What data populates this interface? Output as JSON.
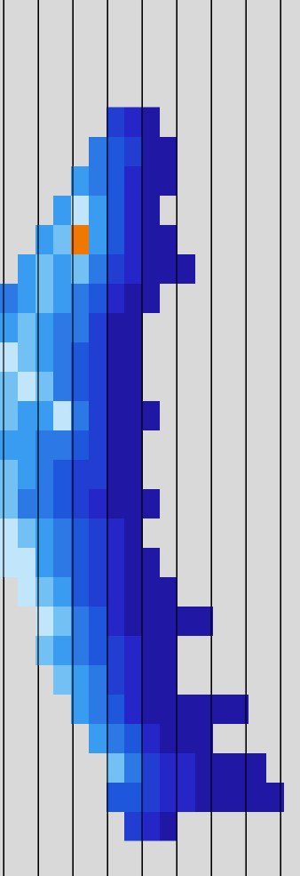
{
  "chart_data": {
    "type": "heatmap",
    "x": [
      10,
      30,
      50,
      70,
      90,
      110,
      130,
      150,
      170,
      190,
      210,
      230,
      250,
      270,
      290,
      310,
      330
    ],
    "y": [
      137,
      170,
      203,
      236,
      269,
      302,
      335,
      368,
      401,
      434,
      467,
      500,
      533,
      566,
      599,
      632,
      665,
      698,
      731,
      764,
      797,
      830,
      863,
      896,
      929
    ],
    "z": [
      [
        null,
        null,
        null,
        null,
        null,
        null,
        3,
        2,
        1,
        null,
        null,
        null,
        null,
        null,
        null,
        null,
        null
      ],
      [
        null,
        null,
        null,
        null,
        null,
        5,
        4,
        3,
        1,
        1,
        null,
        null,
        null,
        null,
        null,
        null,
        null
      ],
      [
        null,
        null,
        null,
        null,
        6,
        5,
        4,
        2,
        1,
        1,
        null,
        null,
        null,
        null,
        null,
        null,
        null
      ],
      [
        null,
        null,
        null,
        6,
        8,
        6,
        4,
        2,
        1,
        null,
        null,
        null,
        null,
        null,
        null,
        null,
        null
      ],
      [
        null,
        null,
        6,
        7,
        10,
        6,
        4,
        2,
        1,
        1,
        null,
        null,
        null,
        null,
        null,
        null,
        null
      ],
      [
        null,
        6,
        7,
        6,
        7,
        5,
        3,
        2,
        1,
        1,
        1,
        null,
        null,
        null,
        null,
        null,
        null
      ],
      [
        5,
        6,
        7,
        6,
        5,
        4,
        2,
        1,
        1,
        null,
        null,
        null,
        null,
        null,
        null,
        null,
        null
      ],
      [
        6,
        7,
        6,
        5,
        5,
        3,
        1,
        1,
        null,
        null,
        null,
        null,
        null,
        null,
        null,
        null,
        null
      ],
      [
        8,
        7,
        6,
        5,
        4,
        3,
        1,
        1,
        null,
        null,
        null,
        null,
        null,
        null,
        null,
        null,
        null
      ],
      [
        7,
        8,
        7,
        5,
        4,
        3,
        1,
        1,
        null,
        null,
        null,
        null,
        null,
        null,
        null,
        null,
        null
      ],
      [
        7,
        6,
        6,
        8,
        5,
        3,
        1,
        1,
        1,
        null,
        null,
        null,
        null,
        null,
        null,
        null,
        null
      ],
      [
        6,
        6,
        5,
        5,
        4,
        3,
        1,
        1,
        null,
        null,
        null,
        null,
        null,
        null,
        null,
        null,
        null
      ],
      [
        7,
        6,
        5,
        4,
        3,
        3,
        1,
        1,
        null,
        null,
        null,
        null,
        null,
        null,
        null,
        null,
        null
      ],
      [
        7,
        5,
        5,
        4,
        3,
        2,
        1,
        1,
        1,
        null,
        null,
        null,
        null,
        null,
        null,
        null,
        null
      ],
      [
        8,
        7,
        6,
        5,
        4,
        3,
        2,
        1,
        null,
        null,
        null,
        null,
        null,
        null,
        null,
        null,
        null
      ],
      [
        8,
        8,
        6,
        5,
        4,
        3,
        2,
        1,
        1,
        null,
        null,
        null,
        null,
        null,
        null,
        null,
        null
      ],
      [
        null,
        8,
        7,
        6,
        4,
        3,
        2,
        1,
        1,
        1,
        null,
        null,
        null,
        null,
        null,
        null,
        null
      ],
      [
        null,
        null,
        8,
        7,
        5,
        4,
        2,
        1,
        1,
        1,
        1,
        1,
        null,
        null,
        null,
        null,
        null
      ],
      [
        null,
        null,
        7,
        6,
        5,
        4,
        3,
        2,
        1,
        1,
        null,
        null,
        null,
        null,
        null,
        null,
        null
      ],
      [
        null,
        null,
        null,
        7,
        6,
        5,
        3,
        2,
        1,
        1,
        null,
        null,
        null,
        null,
        null,
        null,
        null
      ],
      [
        null,
        null,
        null,
        null,
        6,
        5,
        4,
        2,
        1,
        1,
        1,
        1,
        1,
        1,
        null,
        null,
        null
      ],
      [
        null,
        null,
        null,
        null,
        null,
        6,
        5,
        4,
        2,
        1,
        1,
        1,
        null,
        null,
        null,
        null,
        null
      ],
      [
        null,
        null,
        null,
        null,
        null,
        null,
        7,
        5,
        3,
        2,
        2,
        1,
        1,
        1,
        1,
        null,
        null
      ],
      [
        null,
        null,
        null,
        null,
        null,
        null,
        4,
        4,
        3,
        2,
        2,
        1,
        1,
        1,
        1,
        1,
        null
      ],
      [
        null,
        null,
        null,
        null,
        null,
        null,
        null,
        3,
        2,
        1,
        null,
        null,
        null,
        null,
        null,
        null,
        null
      ]
    ],
    "zlim": [
      0,
      10
    ],
    "xlim": [
      0,
      338
    ],
    "ylim": [
      985,
      0
    ],
    "xticks": [
      4,
      43,
      82,
      121,
      160,
      199,
      238,
      277,
      316
    ],
    "yticks": [],
    "grid": true,
    "tick_labels": false
  }
}
